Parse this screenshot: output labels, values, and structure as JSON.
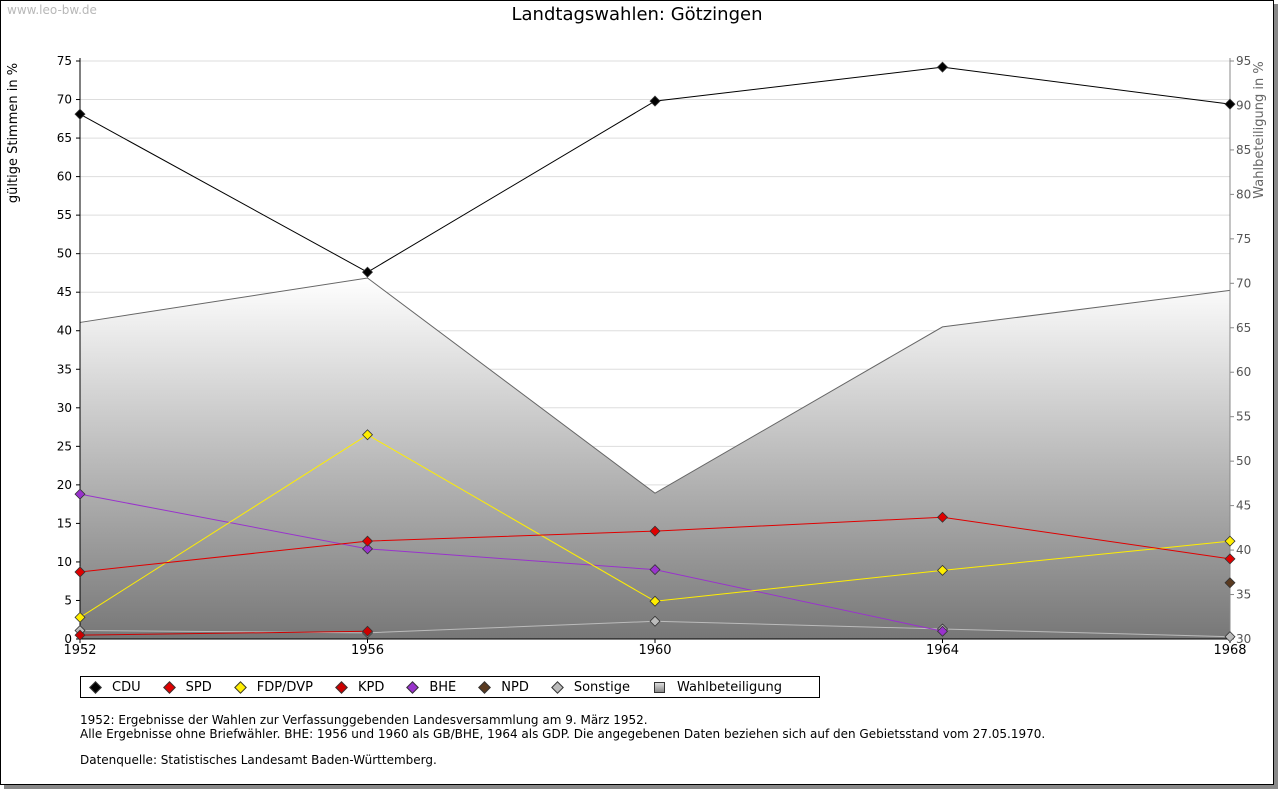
{
  "watermark": "www.leo-bw.de",
  "chart_data": {
    "type": "line",
    "title": "Landtagswahlen: Götzingen",
    "ylabel": "gültige Stimmen in %",
    "y2label": "Wahlbeteiligung in %",
    "x": [
      "1952",
      "1956",
      "1960",
      "1964",
      "1968"
    ],
    "ylim": [
      0,
      75
    ],
    "y2lim": [
      30,
      95
    ],
    "yticks": [
      0,
      5,
      10,
      15,
      20,
      25,
      30,
      35,
      40,
      45,
      50,
      55,
      60,
      65,
      70,
      75
    ],
    "y2ticks": [
      30,
      35,
      40,
      45,
      50,
      55,
      60,
      65,
      70,
      75,
      80,
      85,
      90,
      95
    ],
    "grid": true,
    "series": [
      {
        "name": "CDU",
        "color": "#000000",
        "values": [
          68.1,
          47.6,
          69.8,
          74.2,
          69.4
        ]
      },
      {
        "name": "SPD",
        "color": "#e00000",
        "values": [
          8.7,
          12.7,
          14.0,
          15.8,
          10.4
        ]
      },
      {
        "name": "FDP/DVP",
        "color": "#ffee00",
        "values": [
          2.8,
          26.5,
          4.9,
          8.9,
          12.7
        ]
      },
      {
        "name": "KPD",
        "color": "#cc0000",
        "values": [
          0.5,
          1.0,
          null,
          null,
          null
        ]
      },
      {
        "name": "BHE",
        "color": "#9933cc",
        "values": [
          18.8,
          11.7,
          9.0,
          1.0,
          null
        ]
      },
      {
        "name": "NPD",
        "color": "#5a3a20",
        "values": [
          null,
          null,
          null,
          null,
          7.3
        ]
      },
      {
        "name": "Sonstige",
        "color": "#bbbbbb",
        "values": [
          1.1,
          0.8,
          2.3,
          1.3,
          0.3
        ]
      }
    ],
    "turnout": {
      "name": "Wahlbeteiligung",
      "axis": "right",
      "values": [
        65.6,
        70.6,
        46.4,
        65.1,
        69.2
      ]
    }
  },
  "notes": {
    "line1": "1952: Ergebnisse der Wahlen zur Verfassunggebenden Landesversammlung am 9. März 1952.",
    "line2": "Alle Ergebnisse ohne Briefwähler. BHE: 1956 und 1960 als GB/BHE, 1964 als GDP. Die angegebenen Daten beziehen sich auf den Gebietsstand vom 27.05.1970.",
    "source": "Datenquelle: Statistisches Landesamt Baden-Württemberg."
  }
}
